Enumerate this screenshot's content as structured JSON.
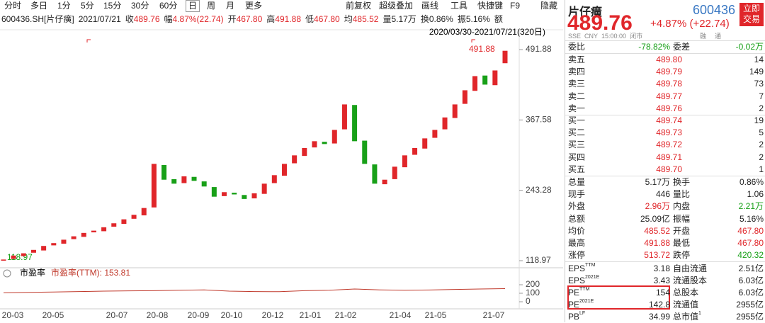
{
  "toolbar": {
    "tabs": [
      "分时",
      "多日",
      "1分",
      "5分",
      "15分",
      "30分",
      "60分",
      "日",
      "周",
      "月",
      "更多"
    ],
    "selected_tab": 7,
    "tools": [
      "前复权",
      "超级叠加",
      "画线",
      "工具",
      "快捷键",
      "F9",
      "隐藏"
    ]
  },
  "colors": {
    "up": "#e0262a",
    "down": "#18a018"
  },
  "info_bar": {
    "symbol": "600436.SH[片仔癀]",
    "date": "2021/07/21",
    "items": [
      {
        "label": "收",
        "value": "489.76",
        "tone": "up"
      },
      {
        "label": "幅",
        "value": "4.87%(22.74)",
        "tone": "up"
      },
      {
        "label": "开",
        "value": "467.80",
        "tone": "up"
      },
      {
        "label": "高",
        "value": "491.88",
        "tone": "up"
      },
      {
        "label": "低",
        "value": "467.80",
        "tone": "up"
      },
      {
        "label": "均",
        "value": "485.52",
        "tone": "up"
      },
      {
        "label": "量",
        "value": "5.17万"
      },
      {
        "label": "换",
        "value": "0.86%"
      },
      {
        "label": "振",
        "value": "5.16%"
      },
      {
        "label": "额"
      }
    ]
  },
  "price_chart": {
    "type": "candlestick",
    "range": "2020/03/30-2021/07/21(320日)",
    "open": [
      119,
      122,
      127,
      133,
      137,
      146,
      149,
      157,
      161,
      169,
      171,
      179,
      184,
      193,
      199,
      213,
      288,
      263,
      256,
      267,
      259,
      249,
      233,
      239,
      235,
      229,
      237,
      256,
      269,
      291,
      304,
      319,
      329,
      326,
      351,
      394,
      331,
      289,
      254,
      263,
      284,
      306,
      317,
      336,
      351,
      371,
      396,
      419,
      446,
      429,
      467.8
    ],
    "close": [
      121,
      128,
      132,
      138,
      145,
      150,
      156,
      162,
      168,
      172,
      178,
      185,
      192,
      200,
      212,
      290,
      262,
      255,
      268,
      260,
      250,
      232,
      240,
      236,
      228,
      238,
      255,
      270,
      290,
      305,
      318,
      330,
      325,
      350,
      395,
      330,
      290,
      255,
      262,
      285,
      305,
      318,
      335,
      350,
      372,
      395,
      420,
      445,
      430,
      455,
      489.76
    ],
    "ylim": [
      118.97,
      491.88
    ],
    "yticks": [
      118.97,
      243.28,
      367.58,
      491.88
    ],
    "high_label": "491.88",
    "low_label": "118.97",
    "x_labels": [
      "20-03",
      "20-05",
      "20-07",
      "20-08",
      "20-09",
      "20-10",
      "20-12",
      "21-01",
      "21-02",
      "21-04",
      "21-05",
      "21-07"
    ]
  },
  "pe_chart": {
    "type": "line",
    "title": "市盈率",
    "legend": "市盈率(TTM): 153.81",
    "color": "#c0392b",
    "values": [
      105,
      110,
      115,
      120,
      125,
      128,
      130,
      135,
      140,
      125,
      120,
      118,
      130,
      135,
      150,
      140,
      135,
      138,
      145,
      150,
      153.81
    ],
    "ylim": [
      0,
      200
    ],
    "yticks": [
      0,
      100,
      200
    ]
  },
  "quote": {
    "name": "片仔癀",
    "code": "600436",
    "trade_button": "立即交易",
    "price": "489.76",
    "change": "+4.87% (+22.74)",
    "status": [
      "SSE",
      "CNY",
      "15:00:00",
      "闭市"
    ],
    "tags": [
      "融",
      "通"
    ],
    "ratio_row": [
      "委比",
      {
        "text": "-78.82%",
        "tone": "down"
      },
      "委差",
      {
        "text": "-0.02万",
        "tone": "down"
      }
    ],
    "book": {
      "price_tone": "up",
      "sells": [
        [
          "卖五",
          "489.80",
          "14"
        ],
        [
          "卖四",
          "489.79",
          "149"
        ],
        [
          "卖三",
          "489.78",
          "73"
        ],
        [
          "卖二",
          "489.77",
          "7"
        ],
        [
          "卖一",
          "489.76",
          "2"
        ]
      ],
      "buys": [
        [
          "买一",
          "489.74",
          "19"
        ],
        [
          "买二",
          "489.73",
          "5"
        ],
        [
          "买三",
          "489.72",
          "2"
        ],
        [
          "买四",
          "489.71",
          "2"
        ],
        [
          "买五",
          "489.70",
          "1"
        ]
      ]
    },
    "stats": [
      [
        "总量",
        "5.17万",
        "换手",
        "0.86%"
      ],
      [
        "现手",
        "446",
        "量比",
        "1.06"
      ],
      [
        "外盘",
        {
          "text": "2.96万",
          "tone": "up"
        },
        "内盘",
        {
          "text": "2.21万",
          "tone": "down"
        }
      ],
      [
        "总额",
        "25.09亿",
        "振幅",
        "5.16%"
      ],
      [
        "均价",
        {
          "text": "485.52",
          "tone": "up"
        },
        "开盘",
        {
          "text": "467.80",
          "tone": "up"
        }
      ],
      [
        "最高",
        {
          "text": "491.88",
          "tone": "up"
        },
        "最低",
        {
          "text": "467.80",
          "tone": "up"
        }
      ],
      [
        "涨停",
        {
          "text": "513.72",
          "tone": "up"
        },
        "跌停",
        {
          "text": "420.32",
          "tone": "down"
        }
      ]
    ],
    "fundamentals": [
      [
        {
          "text": "EPS",
          "sup": "TTM"
        },
        "3.18",
        "自由流通",
        "2.51亿"
      ],
      [
        {
          "text": "EPS",
          "sup": "2021E"
        },
        "3.43",
        "流通股本",
        "6.03亿"
      ],
      [
        {
          "text": "PE",
          "sup": "TTM"
        },
        "154",
        "总股本",
        "6.03亿"
      ],
      [
        {
          "text": "PE",
          "sup": "2021E"
        },
        "142.8",
        "流通值",
        "2955亿"
      ],
      [
        {
          "text": "PB",
          "sup": "LF"
        },
        "34.99",
        {
          "text": "总市值",
          "sup": "1"
        },
        "2955亿"
      ]
    ]
  }
}
